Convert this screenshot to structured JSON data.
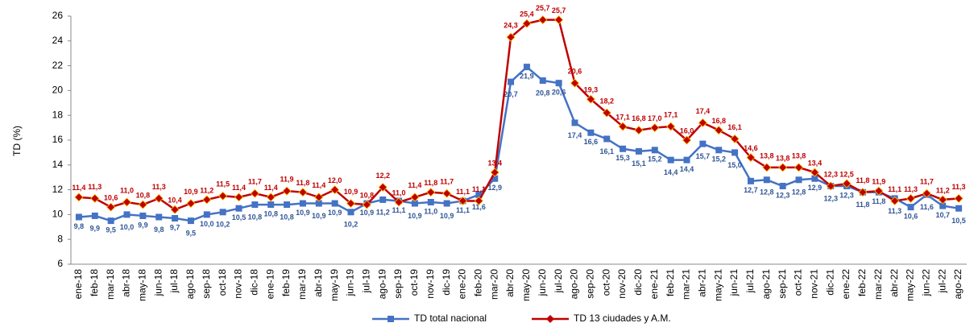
{
  "chart_data": {
    "type": "line",
    "y_label": "TD (%)",
    "categories": [
      "ene-18",
      "feb-18",
      "mar-18",
      "abr-18",
      "may-18",
      "jun-18",
      "jul-18",
      "ago-18",
      "sep-18",
      "oct-18",
      "nov-18",
      "dic-18",
      "ene-19",
      "feb-19",
      "mar-19",
      "abr-19",
      "may-19",
      "jun-19",
      "jul-19",
      "ago-19",
      "sep-19",
      "oct-19",
      "nov-19",
      "dic-19",
      "ene-20",
      "feb-20",
      "mar-20",
      "abr-20",
      "may-20",
      "jun-20",
      "jul-20",
      "ago-20",
      "sep-20",
      "oct-20",
      "nov-20",
      "dic-20",
      "ene-21",
      "feb-21",
      "mar-21",
      "abr-21",
      "may-21",
      "jun-21",
      "jul-21",
      "ago-21",
      "sep-21",
      "oct-21",
      "nov-21",
      "dic-21",
      "ene-22",
      "feb-22",
      "mar-22",
      "abr-22",
      "may-22",
      "jun-22",
      "jul-22",
      "ago-22"
    ],
    "series": [
      {
        "name": "TD total nacional",
        "color": "#4472c4",
        "label_color": "#2f5597",
        "values": [
          9.8,
          9.9,
          9.5,
          10.0,
          9.9,
          9.8,
          9.7,
          9.5,
          10.0,
          10.2,
          10.5,
          10.8,
          10.8,
          10.8,
          10.9,
          10.9,
          10.9,
          10.2,
          10.9,
          11.2,
          11.1,
          10.9,
          11.0,
          10.9,
          11.1,
          11.6,
          12.9,
          20.7,
          21.9,
          20.8,
          20.6,
          17.4,
          16.6,
          16.1,
          15.3,
          15.1,
          15.2,
          14.4,
          14.4,
          15.7,
          15.2,
          15.0,
          12.7,
          12.8,
          12.3,
          12.8,
          12.9,
          12.3,
          12.3,
          11.8,
          11.8,
          11.3,
          10.6,
          11.6,
          10.7,
          10.5
        ],
        "value_labels": [
          "9,8",
          "9,9",
          "9,5",
          "10,0",
          "9,9",
          "9,8",
          "9,7",
          "9,5",
          "10,0",
          "10,2",
          "10,5",
          "10,8",
          "10,8",
          "10,8",
          "10,9",
          "10,9",
          "10,9",
          "10,2",
          "10,9",
          "11,2",
          "11,1",
          "10,9",
          "11,0",
          "10,9",
          "11,1",
          "11,6",
          "12,9",
          "20,7",
          "21,9",
          "20,8",
          "20,6",
          "17,4",
          "16,6",
          "16,1",
          "15,3",
          "15,1",
          "15,2",
          "14,4",
          "14,4",
          "15,7",
          "15,2",
          "15,0",
          "12,7",
          "12,8",
          "12,3",
          "12,8",
          "12,9",
          "12,3",
          "12,3",
          "11,8",
          "11,8",
          "11,3",
          "10,6",
          "11,6",
          "10,7",
          "10,5"
        ]
      },
      {
        "name": "TD 13 ciudades y A.M.",
        "color": "#c00000",
        "label_color": "#c00000",
        "values": [
          11.4,
          11.3,
          10.6,
          11.0,
          10.8,
          11.3,
          10.4,
          10.9,
          11.2,
          11.5,
          11.4,
          11.7,
          11.4,
          11.9,
          11.8,
          11.4,
          12.0,
          10.9,
          10.8,
          12.2,
          11.0,
          11.4,
          11.8,
          11.7,
          11.1,
          11.1,
          13.4,
          24.3,
          25.4,
          25.7,
          25.7,
          20.6,
          19.3,
          18.2,
          17.1,
          16.8,
          17.0,
          17.1,
          16.0,
          17.4,
          16.8,
          16.1,
          14.6,
          13.8,
          13.8,
          13.8,
          13.4,
          12.3,
          12.5,
          11.8,
          11.9,
          11.1,
          11.3,
          11.7,
          11.2,
          11.3
        ],
        "value_labels": [
          "11,4",
          "11,3",
          "10,6",
          "11,0",
          "10,8",
          "11,3",
          "10,4",
          "10,9",
          "11,2",
          "11,5",
          "11,4",
          "11,7",
          "11,4",
          "11,9",
          "11,8",
          "11,4",
          "12,0",
          "10,9",
          "10,8",
          "12,2",
          "11,0",
          "11,4",
          "11,8",
          "11,7",
          "11,1",
          "11,1",
          "13,4",
          "24,3",
          "25,4",
          "25,7",
          "25,7",
          "20,6",
          "19,3",
          "18,2",
          "17,1",
          "16,8",
          "17,0",
          "17,1",
          "16,0",
          "17,4",
          "16,8",
          "16,1",
          "14,6",
          "13,8",
          "13,8",
          "13,8",
          "13,4",
          "12,3",
          "12,5",
          "11,8",
          "11,9",
          "11,1",
          "11,3",
          "11,7",
          "11,2",
          "11,3"
        ]
      }
    ],
    "ylim": [
      6,
      26
    ],
    "yticks": [
      6,
      8,
      10,
      12,
      14,
      16,
      18,
      20,
      22,
      24,
      26
    ],
    "grid": false,
    "legend": "bottom"
  }
}
